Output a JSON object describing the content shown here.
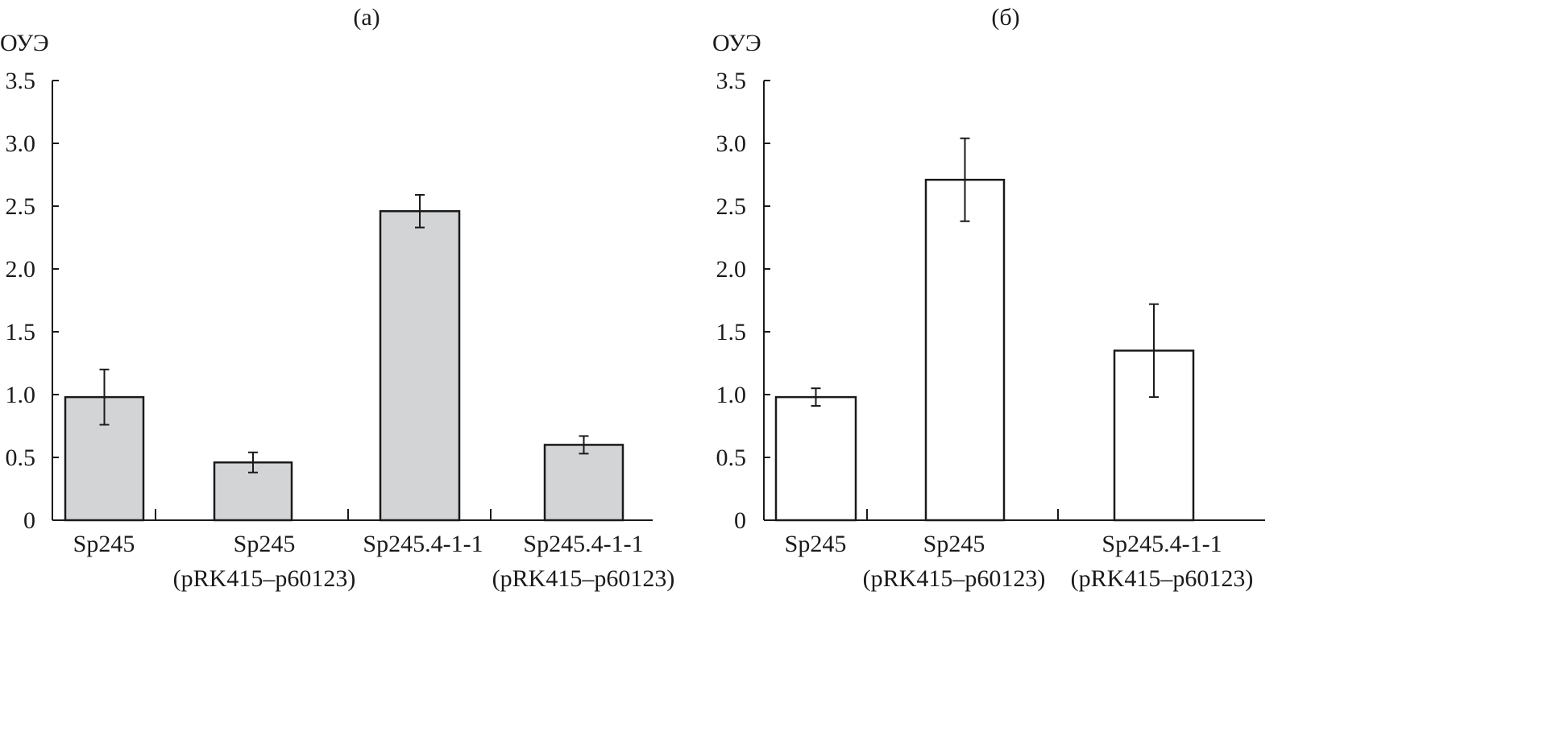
{
  "chart_data": [
    {
      "type": "bar",
      "title": "(а)",
      "ylabel": "ОУЭ",
      "xlabel": "",
      "ylim": [
        0,
        3.5
      ],
      "yticks": [
        "0",
        "0.5",
        "1.0",
        "1.5",
        "2.0",
        "2.5",
        "3.0",
        "3.5"
      ],
      "bar_color": "#d3d4d6",
      "categories": [
        [
          "Sp245"
        ],
        [
          "Sp245",
          "(pRK415–p60123)"
        ],
        [
          "Sp245.4-1-1"
        ],
        [
          "Sp245.4-1-1",
          "(pRK415–p60123)"
        ]
      ],
      "values": [
        0.98,
        0.46,
        2.46,
        0.6
      ],
      "errors": [
        0.22,
        0.08,
        0.13,
        0.07
      ]
    },
    {
      "type": "bar",
      "title": "(б)",
      "ylabel": "ОУЭ",
      "xlabel": "",
      "ylim": [
        0,
        3.5
      ],
      "yticks": [
        "0",
        "0.5",
        "1.0",
        "1.5",
        "2.0",
        "2.5",
        "3.0",
        "3.5"
      ],
      "bar_color": "#ffffff",
      "categories": [
        [
          "Sp245"
        ],
        [
          "Sp245",
          "(pRK415–p60123)"
        ],
        [
          "Sp245.4-1-1",
          "(pRK415–p60123)"
        ]
      ],
      "values": [
        0.98,
        2.71,
        1.35
      ],
      "errors": [
        0.07,
        0.33,
        0.37
      ]
    }
  ]
}
